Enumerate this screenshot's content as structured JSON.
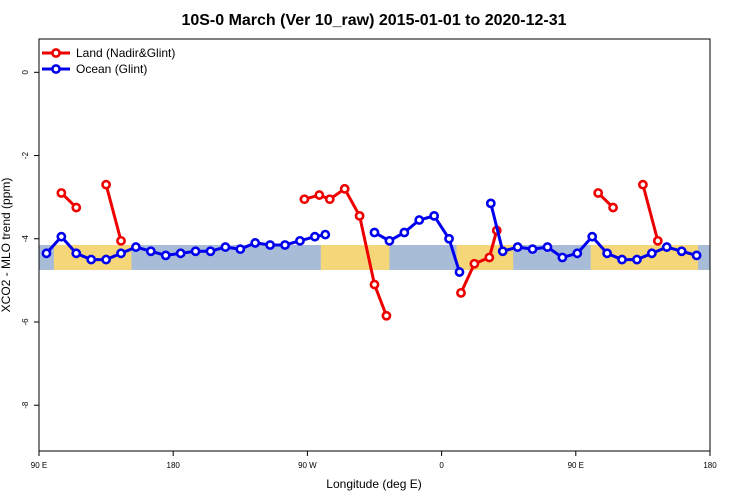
{
  "chart_data": {
    "type": "line",
    "title": "10S-0 March (Ver 10_raw)   2015-01-01 to 2020-12-31",
    "xlabel": "Longitude (deg E)",
    "ylabel": "XCO2 - MLO trend (ppm)",
    "x_ticks": [
      {
        "value": 90,
        "label": "90 E"
      },
      {
        "value": 180,
        "label": "180"
      },
      {
        "value": 270,
        "label": "90 W"
      },
      {
        "value": 360,
        "label": "0"
      },
      {
        "value": 450,
        "label": "90 E"
      },
      {
        "value": 540,
        "label": "180"
      }
    ],
    "y_ticks": [
      {
        "value": 0,
        "label": "0"
      },
      {
        "value": -2,
        "label": "-2"
      },
      {
        "value": -4,
        "label": "-4"
      },
      {
        "value": -6,
        "label": "-6"
      },
      {
        "value": -8,
        "label": "-8"
      }
    ],
    "xlim": [
      90,
      540
    ],
    "ylim": [
      -9.1,
      0.8
    ],
    "band": {
      "ymin": -4.75,
      "ymax": -4.15,
      "ocean_color": "#a8bcd8",
      "land_color": "#f5d77a"
    },
    "land_regions": [
      [
        100,
        152
      ],
      [
        279,
        325
      ],
      [
        370,
        408
      ],
      [
        460,
        532
      ]
    ],
    "legend_position": "top-left",
    "series": [
      {
        "name": "Land (Nadir&Glint)",
        "color": "#ee0000",
        "segments": [
          [
            [
              105,
              -2.9
            ],
            [
              115,
              -3.25
            ]
          ],
          [
            [
              135,
              -2.7
            ],
            [
              145,
              -4.05
            ]
          ],
          [
            [
              268,
              -3.05
            ],
            [
              278,
              -2.95
            ],
            [
              285,
              -3.05
            ],
            [
              295,
              -2.8
            ],
            [
              305,
              -3.45
            ],
            [
              315,
              -5.1
            ],
            [
              323,
              -5.85
            ]
          ],
          [
            [
              373,
              -5.3
            ],
            [
              382,
              -4.6
            ],
            [
              392,
              -4.45
            ],
            [
              397,
              -3.8
            ]
          ],
          [
            [
              465,
              -2.9
            ],
            [
              475,
              -3.25
            ]
          ],
          [
            [
              495,
              -2.7
            ],
            [
              505,
              -4.05
            ]
          ]
        ]
      },
      {
        "name": "Ocean (Glint)",
        "color": "#0000ee",
        "segments": [
          [
            [
              95,
              -4.35
            ],
            [
              105,
              -3.95
            ],
            [
              115,
              -4.35
            ],
            [
              125,
              -4.5
            ],
            [
              135,
              -4.5
            ],
            [
              145,
              -4.35
            ],
            [
              155,
              -4.2
            ],
            [
              165,
              -4.3
            ],
            [
              175,
              -4.4
            ],
            [
              185,
              -4.35
            ],
            [
              195,
              -4.3
            ],
            [
              205,
              -4.3
            ],
            [
              215,
              -4.2
            ],
            [
              225,
              -4.25
            ],
            [
              235,
              -4.1
            ],
            [
              245,
              -4.15
            ],
            [
              255,
              -4.15
            ],
            [
              265,
              -4.05
            ],
            [
              275,
              -3.95
            ],
            [
              282,
              -3.9
            ]
          ],
          [
            [
              315,
              -3.85
            ],
            [
              325,
              -4.05
            ],
            [
              335,
              -3.85
            ],
            [
              345,
              -3.55
            ],
            [
              355,
              -3.45
            ],
            [
              365,
              -4.0
            ],
            [
              372,
              -4.8
            ]
          ],
          [
            [
              393,
              -3.15
            ],
            [
              401,
              -4.3
            ],
            [
              411,
              -4.2
            ],
            [
              421,
              -4.25
            ],
            [
              431,
              -4.2
            ],
            [
              441,
              -4.45
            ],
            [
              451,
              -4.35
            ],
            [
              461,
              -3.95
            ],
            [
              471,
              -4.35
            ],
            [
              481,
              -4.5
            ],
            [
              491,
              -4.5
            ],
            [
              501,
              -4.35
            ],
            [
              511,
              -4.2
            ],
            [
              521,
              -4.3
            ],
            [
              531,
              -4.4
            ]
          ]
        ]
      }
    ]
  }
}
